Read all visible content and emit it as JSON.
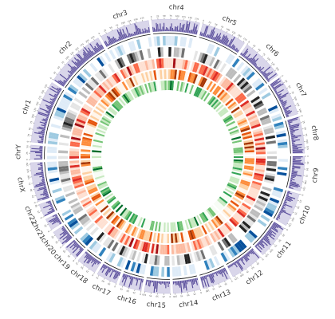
{
  "diagram": {
    "type": "circos",
    "chromosomes": [
      {
        "name": "chr1",
        "length": 249,
        "ticks": [
          "0",
          "25",
          "50",
          "75",
          "100",
          "125",
          "150",
          "175",
          "200",
          "225"
        ]
      },
      {
        "name": "chr2",
        "length": 242,
        "ticks": [
          "0",
          "25",
          "50",
          "75",
          "100",
          "125",
          "150",
          "175",
          "200",
          "225"
        ]
      },
      {
        "name": "chr3",
        "length": 198,
        "ticks": [
          "0",
          "25",
          "50",
          "75",
          "100",
          "125",
          "150",
          "175"
        ]
      },
      {
        "name": "chr4",
        "length": 190,
        "ticks": [
          "0",
          "25",
          "50",
          "75",
          "100",
          "125",
          "150",
          "175"
        ]
      },
      {
        "name": "chr5",
        "length": 181,
        "ticks": [
          "0",
          "25",
          "50",
          "75",
          "100",
          "125",
          "150",
          "175"
        ]
      },
      {
        "name": "chr6",
        "length": 171,
        "ticks": [
          "0",
          "25",
          "50",
          "75",
          "100",
          "125",
          "150"
        ]
      },
      {
        "name": "chr7",
        "length": 159,
        "ticks": [
          "0",
          "25",
          "50",
          "75",
          "100",
          "125",
          "150"
        ]
      },
      {
        "name": "chr8",
        "length": 145,
        "ticks": [
          "0",
          "25",
          "50",
          "75",
          "100",
          "125"
        ]
      },
      {
        "name": "chr9",
        "length": 138,
        "ticks": [
          "0",
          "25",
          "50",
          "75",
          "100",
          "125"
        ]
      },
      {
        "name": "chr10",
        "length": 134,
        "ticks": [
          "0",
          "25",
          "50",
          "75",
          "100",
          "125"
        ]
      },
      {
        "name": "chr11",
        "length": 135,
        "ticks": [
          "0",
          "25",
          "50",
          "75",
          "100",
          "125"
        ]
      },
      {
        "name": "chr12",
        "length": 133,
        "ticks": [
          "0",
          "25",
          "50",
          "75",
          "100",
          "125"
        ]
      },
      {
        "name": "chr13",
        "length": 114,
        "ticks": [
          "0",
          "25",
          "50",
          "75",
          "100"
        ]
      },
      {
        "name": "chr14",
        "length": 107,
        "ticks": [
          "0",
          "25",
          "50",
          "75",
          "100"
        ]
      },
      {
        "name": "chr15",
        "length": 102,
        "ticks": [
          "0",
          "25",
          "50",
          "75",
          "100"
        ]
      },
      {
        "name": "chr16",
        "length": 90,
        "ticks": [
          "0",
          "25",
          "50",
          "75"
        ]
      },
      {
        "name": "chr17",
        "length": 83,
        "ticks": [
          "0",
          "25",
          "50",
          "75"
        ]
      },
      {
        "name": "chr18",
        "length": 80,
        "ticks": [
          "0",
          "25",
          "50",
          "75"
        ]
      },
      {
        "name": "chr19",
        "length": 59,
        "ticks": [
          "0",
          "25",
          "50"
        ]
      },
      {
        "name": "chr20",
        "length": 64,
        "ticks": [
          "0",
          "25",
          "50"
        ]
      },
      {
        "name": "chr21",
        "length": 47,
        "ticks": [
          "0",
          "25"
        ]
      },
      {
        "name": "chr22",
        "length": 51,
        "ticks": [
          "0",
          "25",
          "50"
        ]
      },
      {
        "name": "chrX",
        "length": 156,
        "ticks": [
          "0",
          "25",
          "50",
          "75",
          "100",
          "125",
          "150"
        ]
      },
      {
        "name": "chrY",
        "length": 57,
        "ticks": [
          "0",
          "25",
          "50"
        ]
      }
    ],
    "tracks": [
      {
        "kind": "histogram",
        "color": "#5b4f9c",
        "background": "#d9d6ea"
      },
      {
        "kind": "heatmap",
        "palette": [
          "#ffffff",
          "#deebf7",
          "#9ecae1",
          "#3182bd",
          "#08519c"
        ]
      },
      {
        "kind": "heatmap",
        "palette": [
          "#ffffff",
          "#e5e5e5",
          "#bdbdbd",
          "#737373",
          "#252525"
        ]
      },
      {
        "kind": "heatmap",
        "palette": [
          "#fee0d2",
          "#fcbba1",
          "#fb6a4a",
          "#de2d26",
          "#a50f15"
        ]
      },
      {
        "kind": "heatmap",
        "palette": [
          "#fff5eb",
          "#fdd0a2",
          "#fd8d3c",
          "#e6550d",
          "#a63603"
        ]
      },
      {
        "kind": "heatmap",
        "palette": [
          "#f7fcf5",
          "#c7e9c0",
          "#74c476",
          "#31a354",
          "#006d2c"
        ]
      }
    ]
  }
}
